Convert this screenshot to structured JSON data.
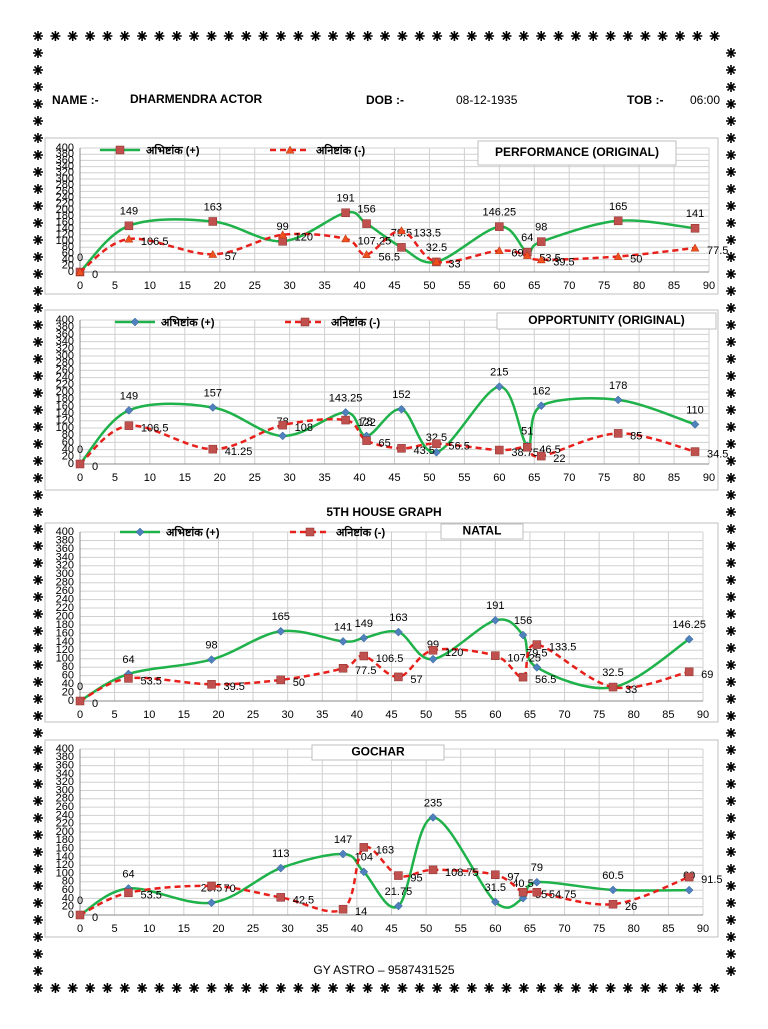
{
  "header": {
    "name_label": "NAME :-",
    "name": "DHARMENDRA ACTOR",
    "dob_label": "DOB :-",
    "dob": "08-12-1935",
    "tob_label": "TOB :-",
    "tob": "06:00"
  },
  "footer": "GY ASTRO – 9587431525",
  "chart_data": [
    {
      "type": "line",
      "title": "PERFORMANCE (ORIGINAL)",
      "smooth": true,
      "grid": true,
      "legend": true,
      "x": [
        0,
        7,
        19,
        29,
        38,
        41,
        46,
        51,
        60,
        64,
        66,
        77,
        88
      ],
      "xlim": [
        0,
        90
      ],
      "xticks": [
        0,
        5,
        10,
        15,
        20,
        25,
        30,
        35,
        40,
        45,
        50,
        55,
        60,
        65,
        70,
        75,
        80,
        85,
        90
      ],
      "ylim": [
        0,
        400
      ],
      "yticks": [
        0,
        20,
        40,
        60,
        80,
        100,
        120,
        140,
        160,
        180,
        200,
        220,
        240,
        260,
        280,
        300,
        320,
        340,
        360,
        380,
        400
      ],
      "series": [
        {
          "name": "अभिष्टांक (+)",
          "color": "#1fb24a",
          "dash": false,
          "marker": "square",
          "marker_color": "#c0504d",
          "values": [
            0,
            149,
            163,
            99,
            191,
            156,
            79.5,
            32.5,
            146.25,
            64,
            98,
            165,
            141
          ]
        },
        {
          "name": "अनिष्टांक (-)",
          "color": "#e8201b",
          "dash": true,
          "marker": "triangle",
          "marker_color": "#f0501e",
          "values": [
            0,
            106.5,
            57,
            120,
            107.25,
            56.5,
            133.5,
            33,
            69,
            53.5,
            39.5,
            50,
            77.5
          ]
        }
      ]
    },
    {
      "type": "line",
      "title": "OPPORTUNITY (ORIGINAL)",
      "smooth": true,
      "grid": true,
      "legend": true,
      "x": [
        0,
        7,
        19,
        29,
        38,
        41,
        46,
        51,
        60,
        64,
        66,
        77,
        88
      ],
      "xlim": [
        0,
        90
      ],
      "xticks": [
        0,
        5,
        10,
        15,
        20,
        25,
        30,
        35,
        40,
        45,
        50,
        55,
        60,
        65,
        70,
        75,
        80,
        85,
        90
      ],
      "ylim": [
        0,
        400
      ],
      "yticks": [
        0,
        20,
        40,
        60,
        80,
        100,
        120,
        140,
        160,
        180,
        200,
        220,
        240,
        260,
        280,
        300,
        320,
        340,
        360,
        380,
        400
      ],
      "series": [
        {
          "name": "अभिष्टांक (+)",
          "color": "#1fb24a",
          "dash": false,
          "marker": "diamond",
          "marker_color": "#4f81bd",
          "values": [
            0,
            149,
            157,
            78,
            143.25,
            78,
            152,
            32.5,
            215,
            51,
            162,
            178,
            110
          ]
        },
        {
          "name": "अनिष्टांक (-)",
          "color": "#e8201b",
          "dash": true,
          "marker": "square",
          "marker_color": "#c0504d",
          "values": [
            0,
            106.5,
            41.25,
            108,
            122,
            65,
            43.5,
            56.5,
            38.75,
            46.5,
            22,
            85,
            34.5
          ]
        }
      ]
    },
    {
      "type": "line",
      "title": "5TH HOUSE GRAPH",
      "subtitle": "NATAL",
      "smooth": true,
      "grid": true,
      "legend": true,
      "x": [
        0,
        7,
        19,
        29,
        38,
        41,
        46,
        51,
        60,
        64,
        66,
        77,
        88
      ],
      "xlim": [
        0,
        90
      ],
      "xticks": [
        0,
        5,
        10,
        15,
        20,
        25,
        30,
        35,
        40,
        45,
        50,
        55,
        60,
        65,
        70,
        75,
        80,
        85,
        90
      ],
      "ylim": [
        0,
        400
      ],
      "yticks": [
        0,
        20,
        40,
        60,
        80,
        100,
        120,
        140,
        160,
        180,
        200,
        220,
        240,
        260,
        280,
        300,
        320,
        340,
        360,
        380,
        400
      ],
      "series": [
        {
          "name": "अभिष्टांक (+)",
          "color": "#1fb24a",
          "dash": false,
          "marker": "diamond",
          "marker_color": "#4f81bd",
          "values": [
            0,
            64,
            98,
            165,
            141,
            149,
            163,
            99,
            191,
            156,
            79.5,
            32.5,
            146.25
          ]
        },
        {
          "name": "अनिष्टांक (-)",
          "color": "#e8201b",
          "dash": true,
          "marker": "square",
          "marker_color": "#c0504d",
          "values": [
            0,
            53.5,
            39.5,
            50,
            77.5,
            106.5,
            57,
            120,
            107.25,
            56.5,
            133.5,
            33,
            69
          ]
        }
      ]
    },
    {
      "type": "line",
      "title": "GOCHAR",
      "smooth": true,
      "grid": true,
      "legend": false,
      "x": [
        0,
        7,
        19,
        29,
        38,
        41,
        46,
        51,
        60,
        64,
        66,
        77,
        88
      ],
      "xlim": [
        0,
        90
      ],
      "xticks": [
        0,
        5,
        10,
        15,
        20,
        25,
        30,
        35,
        40,
        45,
        50,
        55,
        60,
        65,
        70,
        75,
        80,
        85,
        90
      ],
      "ylim": [
        0,
        400
      ],
      "yticks": [
        0,
        20,
        40,
        60,
        80,
        100,
        120,
        140,
        160,
        180,
        200,
        220,
        240,
        260,
        280,
        300,
        320,
        340,
        360,
        380,
        400
      ],
      "series": [
        {
          "color": "#1fb24a",
          "dash": false,
          "marker": "diamond",
          "marker_color": "#4f81bd",
          "values": [
            0,
            64,
            29.5,
            113,
            147,
            104,
            21.75,
            235,
            31.5,
            40.5,
            79,
            60.5,
            60
          ]
        },
        {
          "color": "#e8201b",
          "dash": true,
          "marker": "square",
          "marker_color": "#c0504d",
          "values": [
            0,
            53.5,
            70,
            42.5,
            14,
            163,
            95,
            108.75,
            97,
            55,
            54.75,
            26,
            91.5
          ]
        }
      ]
    }
  ]
}
